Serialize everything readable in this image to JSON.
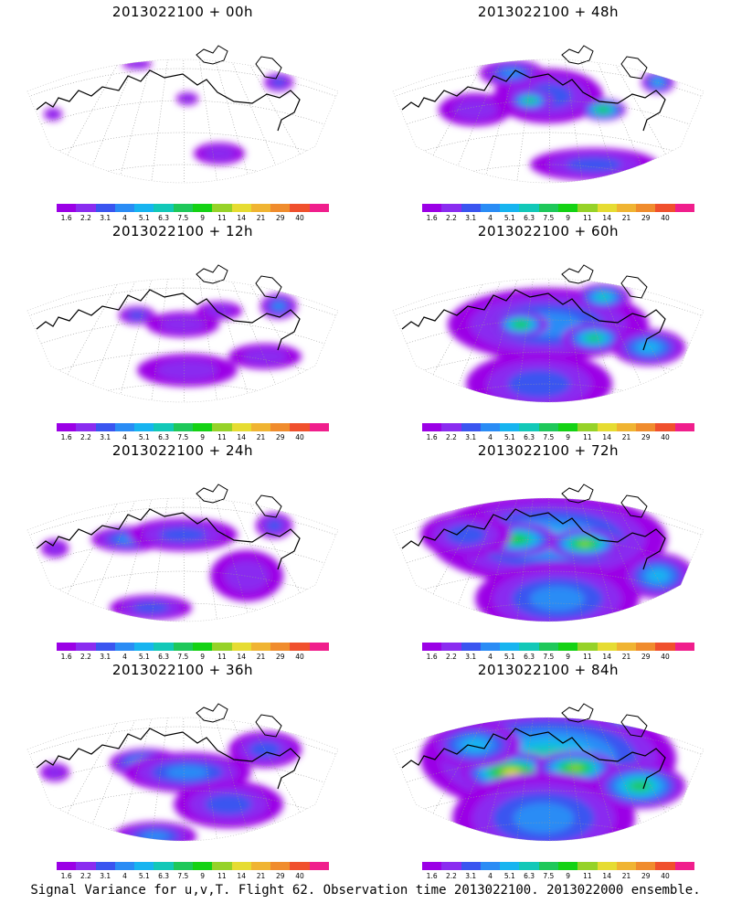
{
  "panels": [
    {
      "title": "2013022100 + 00h",
      "level": 0
    },
    {
      "title": "2013022100 + 48h",
      "level": 4
    },
    {
      "title": "2013022100 + 12h",
      "level": 1
    },
    {
      "title": "2013022100 + 60h",
      "level": 5
    },
    {
      "title": "2013022100 + 24h",
      "level": 2
    },
    {
      "title": "2013022100 + 72h",
      "level": 6
    },
    {
      "title": "2013022100 + 36h",
      "level": 3
    },
    {
      "title": "2013022100 + 84h",
      "level": 7
    }
  ],
  "colorbar": {
    "labels": [
      "1.6",
      "2.2",
      "3.1",
      "4",
      "5.1",
      "6.3",
      "7.5",
      "9",
      "11",
      "14",
      "21",
      "29",
      "40"
    ],
    "colors": [
      "#9b00e6",
      "#8a2cf0",
      "#3a55f0",
      "#2a8cf5",
      "#17b4f0",
      "#12c8b8",
      "#1ec85a",
      "#14d214",
      "#96d228",
      "#e6dc32",
      "#f0b432",
      "#f08c2d",
      "#f0502d",
      "#f01e8c"
    ]
  },
  "caption": "Signal Variance for u,v,T. Flight 62. Observation time 2013022100. 2013022000 ensemble."
}
